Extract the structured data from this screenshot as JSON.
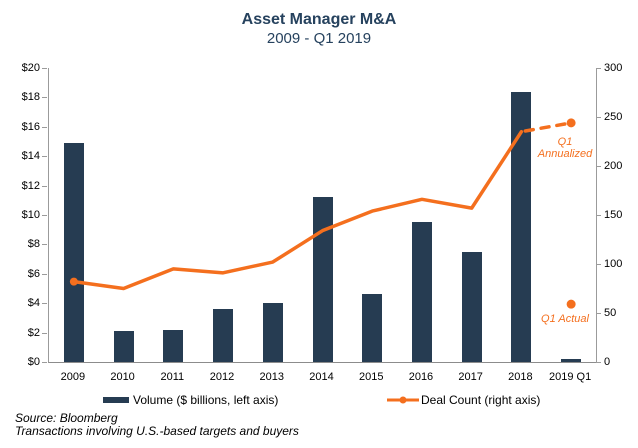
{
  "title": "Asset Manager M&A",
  "subtitle": "2009 - Q1 2019",
  "legend": {
    "volume": "Volume ($ billions, left axis)",
    "deal_count": "Deal Count (right axis)"
  },
  "footnotes": {
    "source": "Source: Bloomberg",
    "note": "Transactions involving U.S.-based targets and buyers"
  },
  "colors": {
    "bar": "#263C52",
    "line": "#F46F1E",
    "title": "#26425E",
    "axis": "#9B9B9B"
  },
  "chart_data": {
    "type": "bar+line combo",
    "categories": [
      "2009",
      "2010",
      "2011",
      "2012",
      "2013",
      "2014",
      "2015",
      "2016",
      "2017",
      "2018",
      "2019 Q1"
    ],
    "series": [
      {
        "name": "Volume ($ billions, left axis)",
        "type": "bar",
        "axis": "left",
        "values": [
          14.9,
          2.1,
          2.2,
          3.6,
          4.0,
          11.2,
          4.6,
          9.5,
          7.5,
          18.4,
          0.2
        ]
      },
      {
        "name": "Deal Count (right axis)",
        "type": "line",
        "axis": "right",
        "values": [
          82,
          75,
          95,
          91,
          102,
          134,
          154,
          166,
          157,
          235,
          null
        ]
      }
    ],
    "left_axis": {
      "min": 0,
      "max": 20,
      "step": 2,
      "tick_labels": [
        "$0",
        "$2",
        "$4",
        "$6",
        "$8",
        "$10",
        "$12",
        "$14",
        "$16",
        "$18",
        "$20"
      ]
    },
    "right_axis": {
      "min": 0,
      "max": 300,
      "step": 50,
      "tick_labels": [
        "0",
        "50",
        "100",
        "150",
        "200",
        "250",
        "300"
      ]
    },
    "annotations": [
      {
        "name": "q1_annualized",
        "label_lines": [
          "Q1",
          "Annualized"
        ],
        "value": 244,
        "category": "2019 Q1"
      },
      {
        "name": "q1_actual",
        "label_lines": [
          "Q1 Actual"
        ],
        "value": 59,
        "category": "2019 Q1"
      }
    ],
    "grid": false,
    "legend_position": "bottom"
  }
}
